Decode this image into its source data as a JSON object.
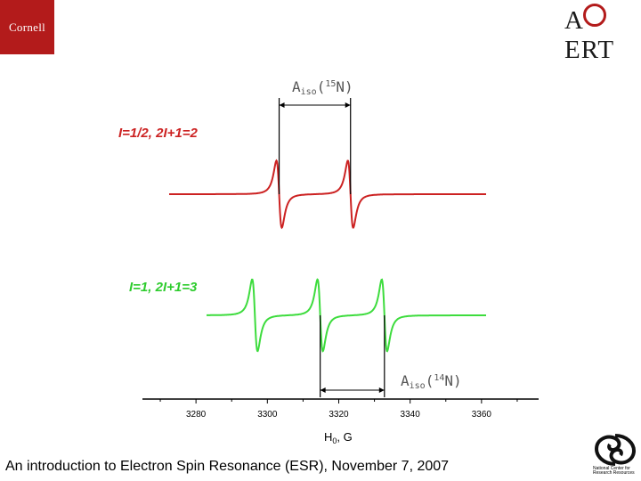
{
  "header": {
    "logo_left": "Cornell",
    "logo_right": "ACERT"
  },
  "footer": {
    "text": "An introduction to Electron Spin Resonance (ESR), November 7, 2007"
  },
  "logo_nrc": {
    "caption": "National Center for Research Resources"
  },
  "chart_data": {
    "type": "line",
    "xlabel": "H",
    "xlabel_sub": "0",
    "xlabel_unit": ", G",
    "xticks": [
      3280,
      3300,
      3320,
      3340,
      3360
    ],
    "xlim": [
      3265,
      3376
    ],
    "series": [
      {
        "name": "I=1/2, 2I+1=2",
        "color": "#cc2222",
        "center_lines": [
          3303.3,
          3323.3
        ],
        "width": 1.3
      },
      {
        "name": "I=1, 2I+1=3",
        "color": "#3ddc3d",
        "center_lines": [
          3296.5,
          3314.8,
          3332.8
        ],
        "width": 1.3
      }
    ],
    "annotations": {
      "a15_label": "A",
      "a15_sub": "iso",
      "a15_paren_open": "(",
      "a15_sup": "15",
      "a15_tail": "N)",
      "a15_between": [
        3303.3,
        3323.3
      ],
      "a14_label": "A",
      "a14_sub": "iso",
      "a14_paren_open": "(",
      "a14_sup": "14",
      "a14_tail": "N)",
      "a14_between": [
        3314.8,
        3332.8
      ]
    },
    "grid": false
  }
}
